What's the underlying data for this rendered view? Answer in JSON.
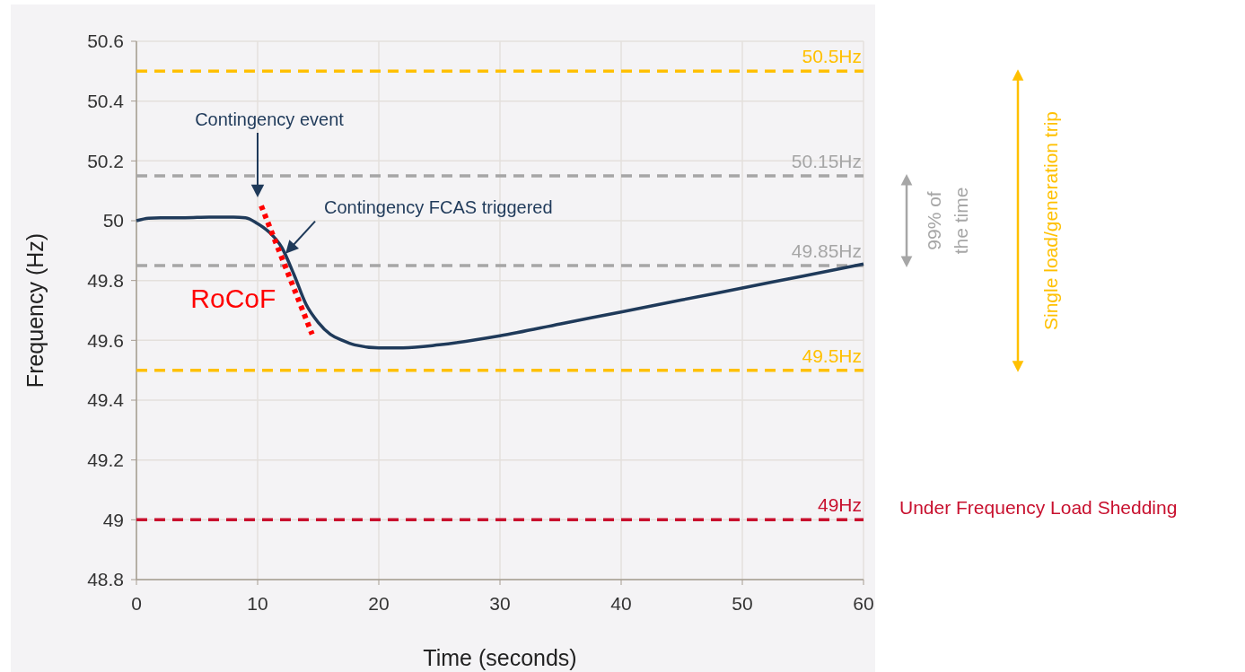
{
  "chart_data": {
    "type": "line",
    "xlabel": "Time (seconds)",
    "ylabel": "Frequency (Hz)",
    "xlim": [
      0,
      60
    ],
    "xticks": [
      0,
      10,
      20,
      30,
      40,
      50,
      60
    ],
    "ylim": [
      48.8,
      50.6
    ],
    "yticks": [
      48.8,
      49,
      49.2,
      49.4,
      49.6,
      49.8,
      50,
      50.2,
      50.4,
      50.6
    ],
    "grid": true,
    "line_style": "solid",
    "marker": "none",
    "series": [
      {
        "color": "#1f3a5a",
        "x": [
          0,
          1,
          2,
          4,
          6,
          8,
          9,
          10,
          11,
          12,
          13,
          14,
          15,
          16,
          17,
          18,
          20,
          22,
          25,
          30,
          35,
          40,
          45,
          50,
          55,
          60
        ],
        "values": [
          50.0,
          50.008,
          50.01,
          50.01,
          50.012,
          50.012,
          50.01,
          49.99,
          49.96,
          49.91,
          49.82,
          49.72,
          49.66,
          49.62,
          49.6,
          49.585,
          49.575,
          49.575,
          49.585,
          49.615,
          49.655,
          49.695,
          49.735,
          49.775,
          49.815,
          49.855
        ]
      },
      {
        "name": "RoCoF",
        "color": "#ff0000",
        "line_style": "dotted",
        "x": [
          10.3,
          14.5
        ],
        "values": [
          50.05,
          49.62
        ]
      }
    ],
    "ref_lines": [
      {
        "axis": "y",
        "value": 50.5,
        "label": "50.5Hz",
        "color": "#ffc000",
        "line_style": "dashed"
      },
      {
        "axis": "y",
        "value": 50.15,
        "label": "50.15Hz",
        "color": "#a6a6a6",
        "line_style": "dashed"
      },
      {
        "axis": "y",
        "value": 49.85,
        "label": "49.85Hz",
        "color": "#a6a6a6",
        "line_style": "dashed"
      },
      {
        "axis": "y",
        "value": 49.5,
        "label": "49.5Hz",
        "color": "#ffc000",
        "line_style": "dashed"
      },
      {
        "axis": "y",
        "value": 49,
        "label": "49Hz",
        "color": "#c8102e",
        "line_style": "dashed"
      }
    ],
    "annotations": [
      "Contingency event",
      "99% of the time",
      "Single load/generation trip",
      {
        "text": "Contingency FCAS triggered",
        "x": 12.3,
        "y": 49.89
      },
      {
        "text": "Under Frequency Load Shedding",
        "x": 60,
        "y": 49
      }
    ]
  }
}
